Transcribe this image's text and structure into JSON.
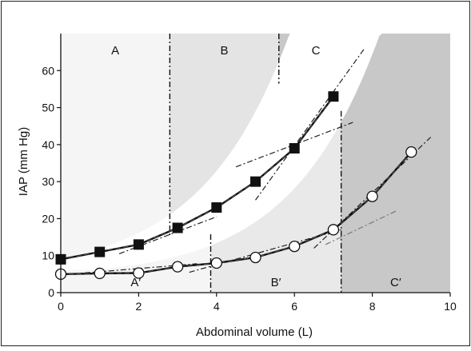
{
  "chart_data": {
    "type": "line",
    "xlabel": "Abdominal volume (L)",
    "ylabel": "IAP (mm Hg)",
    "xlim": [
      0,
      10
    ],
    "ylim": [
      0,
      70
    ],
    "x_ticks": [
      "0",
      "2",
      "4",
      "6",
      "8",
      "10"
    ],
    "y_ticks": [
      "0",
      "10",
      "20",
      "30",
      "40",
      "50",
      "60"
    ],
    "grid": false,
    "legend": "none",
    "series": [
      {
        "marker": "filled-square",
        "color": "#111111",
        "x": [
          0,
          1,
          2,
          3,
          4,
          5,
          6,
          7
        ],
        "y": [
          9,
          11,
          13,
          17.5,
          23,
          30,
          39,
          53
        ]
      },
      {
        "marker": "open-circle",
        "color": "#111111",
        "x": [
          0,
          1,
          2,
          3,
          4,
          5,
          6,
          7,
          8,
          9
        ],
        "y": [
          5,
          5.2,
          5.3,
          7,
          8,
          9.5,
          12.5,
          17,
          26,
          38
        ]
      }
    ],
    "regions": [
      {
        "label": "A",
        "x": [
          0,
          2.8
        ],
        "color": "#f5f5f5",
        "extent": "upper"
      },
      {
        "label": "B",
        "x": [
          2.8,
          5.6
        ],
        "color": "#e4e4e4",
        "extent": "upper"
      },
      {
        "label": "C",
        "x": [
          5.6,
          7.5
        ],
        "color": "#c8c8c8",
        "extent": "upper"
      },
      {
        "label": "A′",
        "x": [
          0,
          3.85
        ],
        "color": "#f5f5f5",
        "extent": "lower"
      },
      {
        "label": "B′",
        "x": [
          3.85,
          7.2
        ],
        "color": "#e9e9e9",
        "extent": "lower"
      },
      {
        "label": "C′",
        "x": [
          7.2,
          10
        ],
        "color": "#c8c8c8",
        "extent": "lower"
      }
    ],
    "boundaries": [
      2.8,
      5.6,
      3.85,
      7.2
    ],
    "tangent_lines": [
      {
        "series": "upper",
        "from": [
          1.5,
          10.5
        ],
        "to": [
          4.0,
          20.5
        ]
      },
      {
        "series": "upper",
        "from": [
          4.5,
          34
        ],
        "to": [
          7.5,
          46
        ]
      },
      {
        "series": "upper",
        "from": [
          5.0,
          25
        ],
        "to": [
          7.8,
          66
        ]
      },
      {
        "series": "lower",
        "from": [
          0,
          4.8
        ],
        "to": [
          3.5,
          7.8
        ]
      },
      {
        "series": "lower",
        "from": [
          3.3,
          5.5
        ],
        "to": [
          7.2,
          17
        ]
      },
      {
        "series": "lower",
        "from": [
          6.8,
          13
        ],
        "to": [
          8.6,
          22
        ]
      },
      {
        "series": "lower",
        "from": [
          6.5,
          12
        ],
        "to": [
          9.5,
          42
        ]
      }
    ]
  }
}
